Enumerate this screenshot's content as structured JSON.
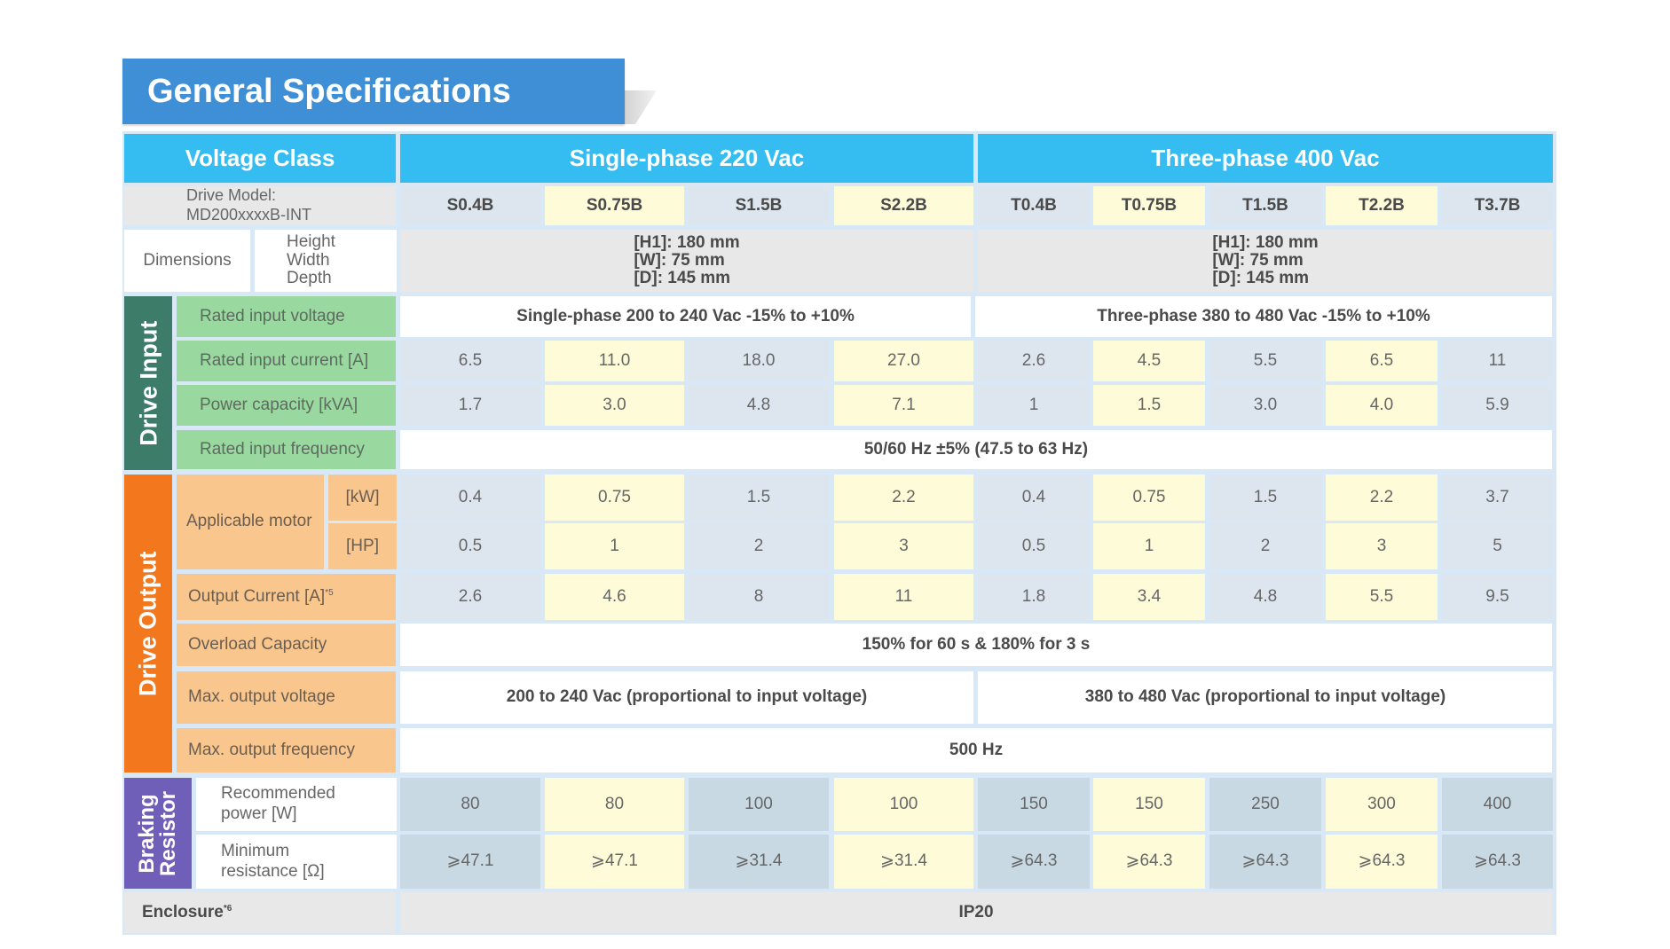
{
  "title": "General Specifications",
  "header": {
    "voltage_class": "Voltage Class",
    "single_phase": "Single-phase 220 Vac",
    "three_phase": "Three-phase 400 Vac"
  },
  "drive_model": {
    "label_line1": "Drive Model:",
    "label_line2": "MD200xxxxB-INT",
    "models": [
      "S0.4B",
      "S0.75B",
      "S1.5B",
      "S2.2B",
      "T0.4B",
      "T0.75B",
      "T1.5B",
      "T2.2B",
      "T3.7B"
    ]
  },
  "dimensions": {
    "label": "Dimensions",
    "sublabels": [
      "Height",
      "Width",
      "Depth"
    ],
    "single": [
      "[H1]: 180 mm",
      "[W]: 75 mm",
      "[D]: 145 mm"
    ],
    "three": [
      "[H1]: 180 mm",
      "[W]: 75 mm",
      "[D]: 145 mm"
    ]
  },
  "drive_input": {
    "section_label": "Drive Input",
    "rated_input_voltage": {
      "label": "Rated input voltage",
      "single": "Single-phase 200 to 240 Vac -15% to +10%",
      "three": "Three-phase 380 to 480 Vac -15% to +10%"
    },
    "rated_input_current": {
      "label": "Rated input current [A]",
      "values": [
        "6.5",
        "11.0",
        "18.0",
        "27.0",
        "2.6",
        "4.5",
        "5.5",
        "6.5",
        "11"
      ]
    },
    "power_capacity": {
      "label": "Power capacity [kVA]",
      "values": [
        "1.7",
        "3.0",
        "4.8",
        "7.1",
        "1",
        "1.5",
        "3.0",
        "4.0",
        "5.9"
      ]
    },
    "rated_input_frequency": {
      "label": "Rated input frequency",
      "value": "50/60 Hz ±5% (47.5 to 63 Hz)"
    }
  },
  "drive_output": {
    "section_label": "Drive Output",
    "applicable_motor": {
      "label": "Applicable motor",
      "kw_unit": "[kW]",
      "hp_unit": "[HP]",
      "kw_values": [
        "0.4",
        "0.75",
        "1.5",
        "2.2",
        "0.4",
        "0.75",
        "1.5",
        "2.2",
        "3.7"
      ],
      "hp_values": [
        "0.5",
        "1",
        "2",
        "3",
        "0.5",
        "1",
        "2",
        "3",
        "5"
      ]
    },
    "output_current": {
      "label": "Output Current [A]",
      "footnote": "*5",
      "values": [
        "2.6",
        "4.6",
        "8",
        "11",
        "1.8",
        "3.4",
        "4.8",
        "5.5",
        "9.5"
      ]
    },
    "overload_capacity": {
      "label": "Overload Capacity",
      "value": "150% for 60 s & 180% for 3 s"
    },
    "max_output_voltage": {
      "label": "Max. output voltage",
      "single": "200 to 240 Vac (proportional to input voltage)",
      "three": "380 to 480 Vac (proportional to input voltage)"
    },
    "max_output_frequency": {
      "label": "Max. output frequency",
      "value": "500 Hz"
    }
  },
  "braking_resistor": {
    "section_label_line1": "Braking",
    "section_label_line2": "Resistor",
    "recommended_power": {
      "label_line1": "Recommended",
      "label_line2": "power [W]",
      "values": [
        "80",
        "80",
        "100",
        "100",
        "150",
        "150",
        "250",
        "300",
        "400"
      ]
    },
    "minimum_resistance": {
      "label_line1": "Minimum",
      "label_line2": "resistance [Ω]",
      "values": [
        "⩾47.1",
        "⩾47.1",
        "⩾31.4",
        "⩾31.4",
        "⩾64.3",
        "⩾64.3",
        "⩾64.3",
        "⩾64.3",
        "⩾64.3"
      ]
    }
  },
  "enclosure": {
    "label": "Enclosure",
    "footnote": "*6",
    "value": "IP20"
  },
  "colors": {
    "title_banner": "#3f8fd6",
    "header": "#35bdf2",
    "drive_input_section": "#3e7c6a",
    "drive_input_label": "#99d9a0",
    "drive_output_section": "#f2771d",
    "drive_output_label": "#f9c78e",
    "braking_section": "#6f5fb8",
    "highlight_column": "#fefbd8"
  }
}
